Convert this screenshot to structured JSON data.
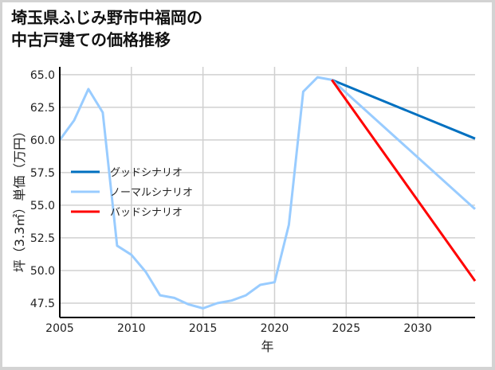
{
  "title": "埼玉県ふじみ野市中福岡の\n中古戸建ての価格推移",
  "chart_data": {
    "type": "line",
    "title": "埼玉県ふじみ野市中福岡の中古戸建ての価格推移",
    "xlabel": "年",
    "ylabel": "坪（3.3㎡）単価（万円）",
    "xlim": [
      2005,
      2034
    ],
    "ylim": [
      46.4,
      65.6
    ],
    "xticks": [
      2005,
      2010,
      2015,
      2020,
      2025,
      2030
    ],
    "yticks": [
      47.5,
      50.0,
      52.5,
      55.0,
      57.5,
      60.0,
      62.5,
      65.0
    ],
    "ytick_labels": [
      "47.5",
      "50.0",
      "52.5",
      "55.0",
      "57.5",
      "60.0",
      "62.5",
      "65.0"
    ],
    "grid": true,
    "legend_position": "center-left",
    "series": [
      {
        "name": "グッドシナリオ",
        "color": "#0070c0",
        "x": [
          2024,
          2034
        ],
        "values": [
          64.6,
          60.1
        ]
      },
      {
        "name": "ノーマルシナリオ",
        "color": "#99ccff",
        "x": [
          2005,
          2006,
          2007,
          2008,
          2009,
          2010,
          2011,
          2012,
          2013,
          2014,
          2015,
          2016,
          2017,
          2018,
          2019,
          2020,
          2021,
          2022,
          2023,
          2024,
          2034
        ],
        "values": [
          60.0,
          61.5,
          63.9,
          62.1,
          51.9,
          51.2,
          49.9,
          48.1,
          47.9,
          47.4,
          47.1,
          47.5,
          47.7,
          48.1,
          48.9,
          49.1,
          53.5,
          63.7,
          64.8,
          64.6,
          54.7
        ]
      },
      {
        "name": "バッドシナリオ",
        "color": "#ff0000",
        "x": [
          2024,
          2034
        ],
        "values": [
          64.6,
          49.2
        ]
      }
    ]
  },
  "legend": {
    "items": [
      {
        "label": "グッドシナリオ",
        "color": "#0070c0"
      },
      {
        "label": "ノーマルシナリオ",
        "color": "#99ccff"
      },
      {
        "label": "バッドシナリオ",
        "color": "#ff0000"
      }
    ]
  }
}
